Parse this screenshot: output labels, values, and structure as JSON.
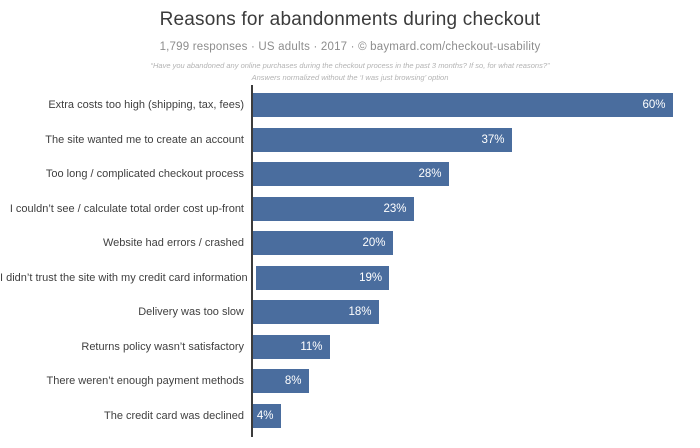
{
  "header": {
    "title": "Reasons for abandonments during checkout",
    "subtitle": "1,799 responses  ·  US adults  ·  2017  ·  © baymard.com/checkout-usability",
    "note_line1": "“Have you abandoned any online purchases during the checkout process in the past 3 months? If so, for what reasons?”",
    "note_line2": "Answers normalized without the ‘I was just browsing’ option"
  },
  "chart_data": {
    "type": "bar",
    "orientation": "horizontal",
    "title": "Reasons for abandonments during checkout",
    "xlabel": "",
    "ylabel": "",
    "xlim": [
      0,
      64
    ],
    "grid": false,
    "legend": false,
    "value_suffix": "%",
    "bar_color": "#4a6d9e",
    "value_label_color": "#ffffff",
    "axis_color": "#3c3c3c",
    "categories": [
      "Extra costs too high (shipping, tax, fees)",
      "The site wanted me to create an account",
      "Too long / complicated checkout process",
      "I couldn’t see / calculate total order cost up-front",
      "Website had errors / crashed",
      "I didn’t trust the site with my credit card information",
      "Delivery was too slow",
      "Returns policy wasn’t satisfactory",
      "There weren’t enough payment methods",
      "The credit card was declined"
    ],
    "values": [
      60,
      37,
      28,
      23,
      20,
      19,
      18,
      11,
      8,
      4
    ]
  }
}
